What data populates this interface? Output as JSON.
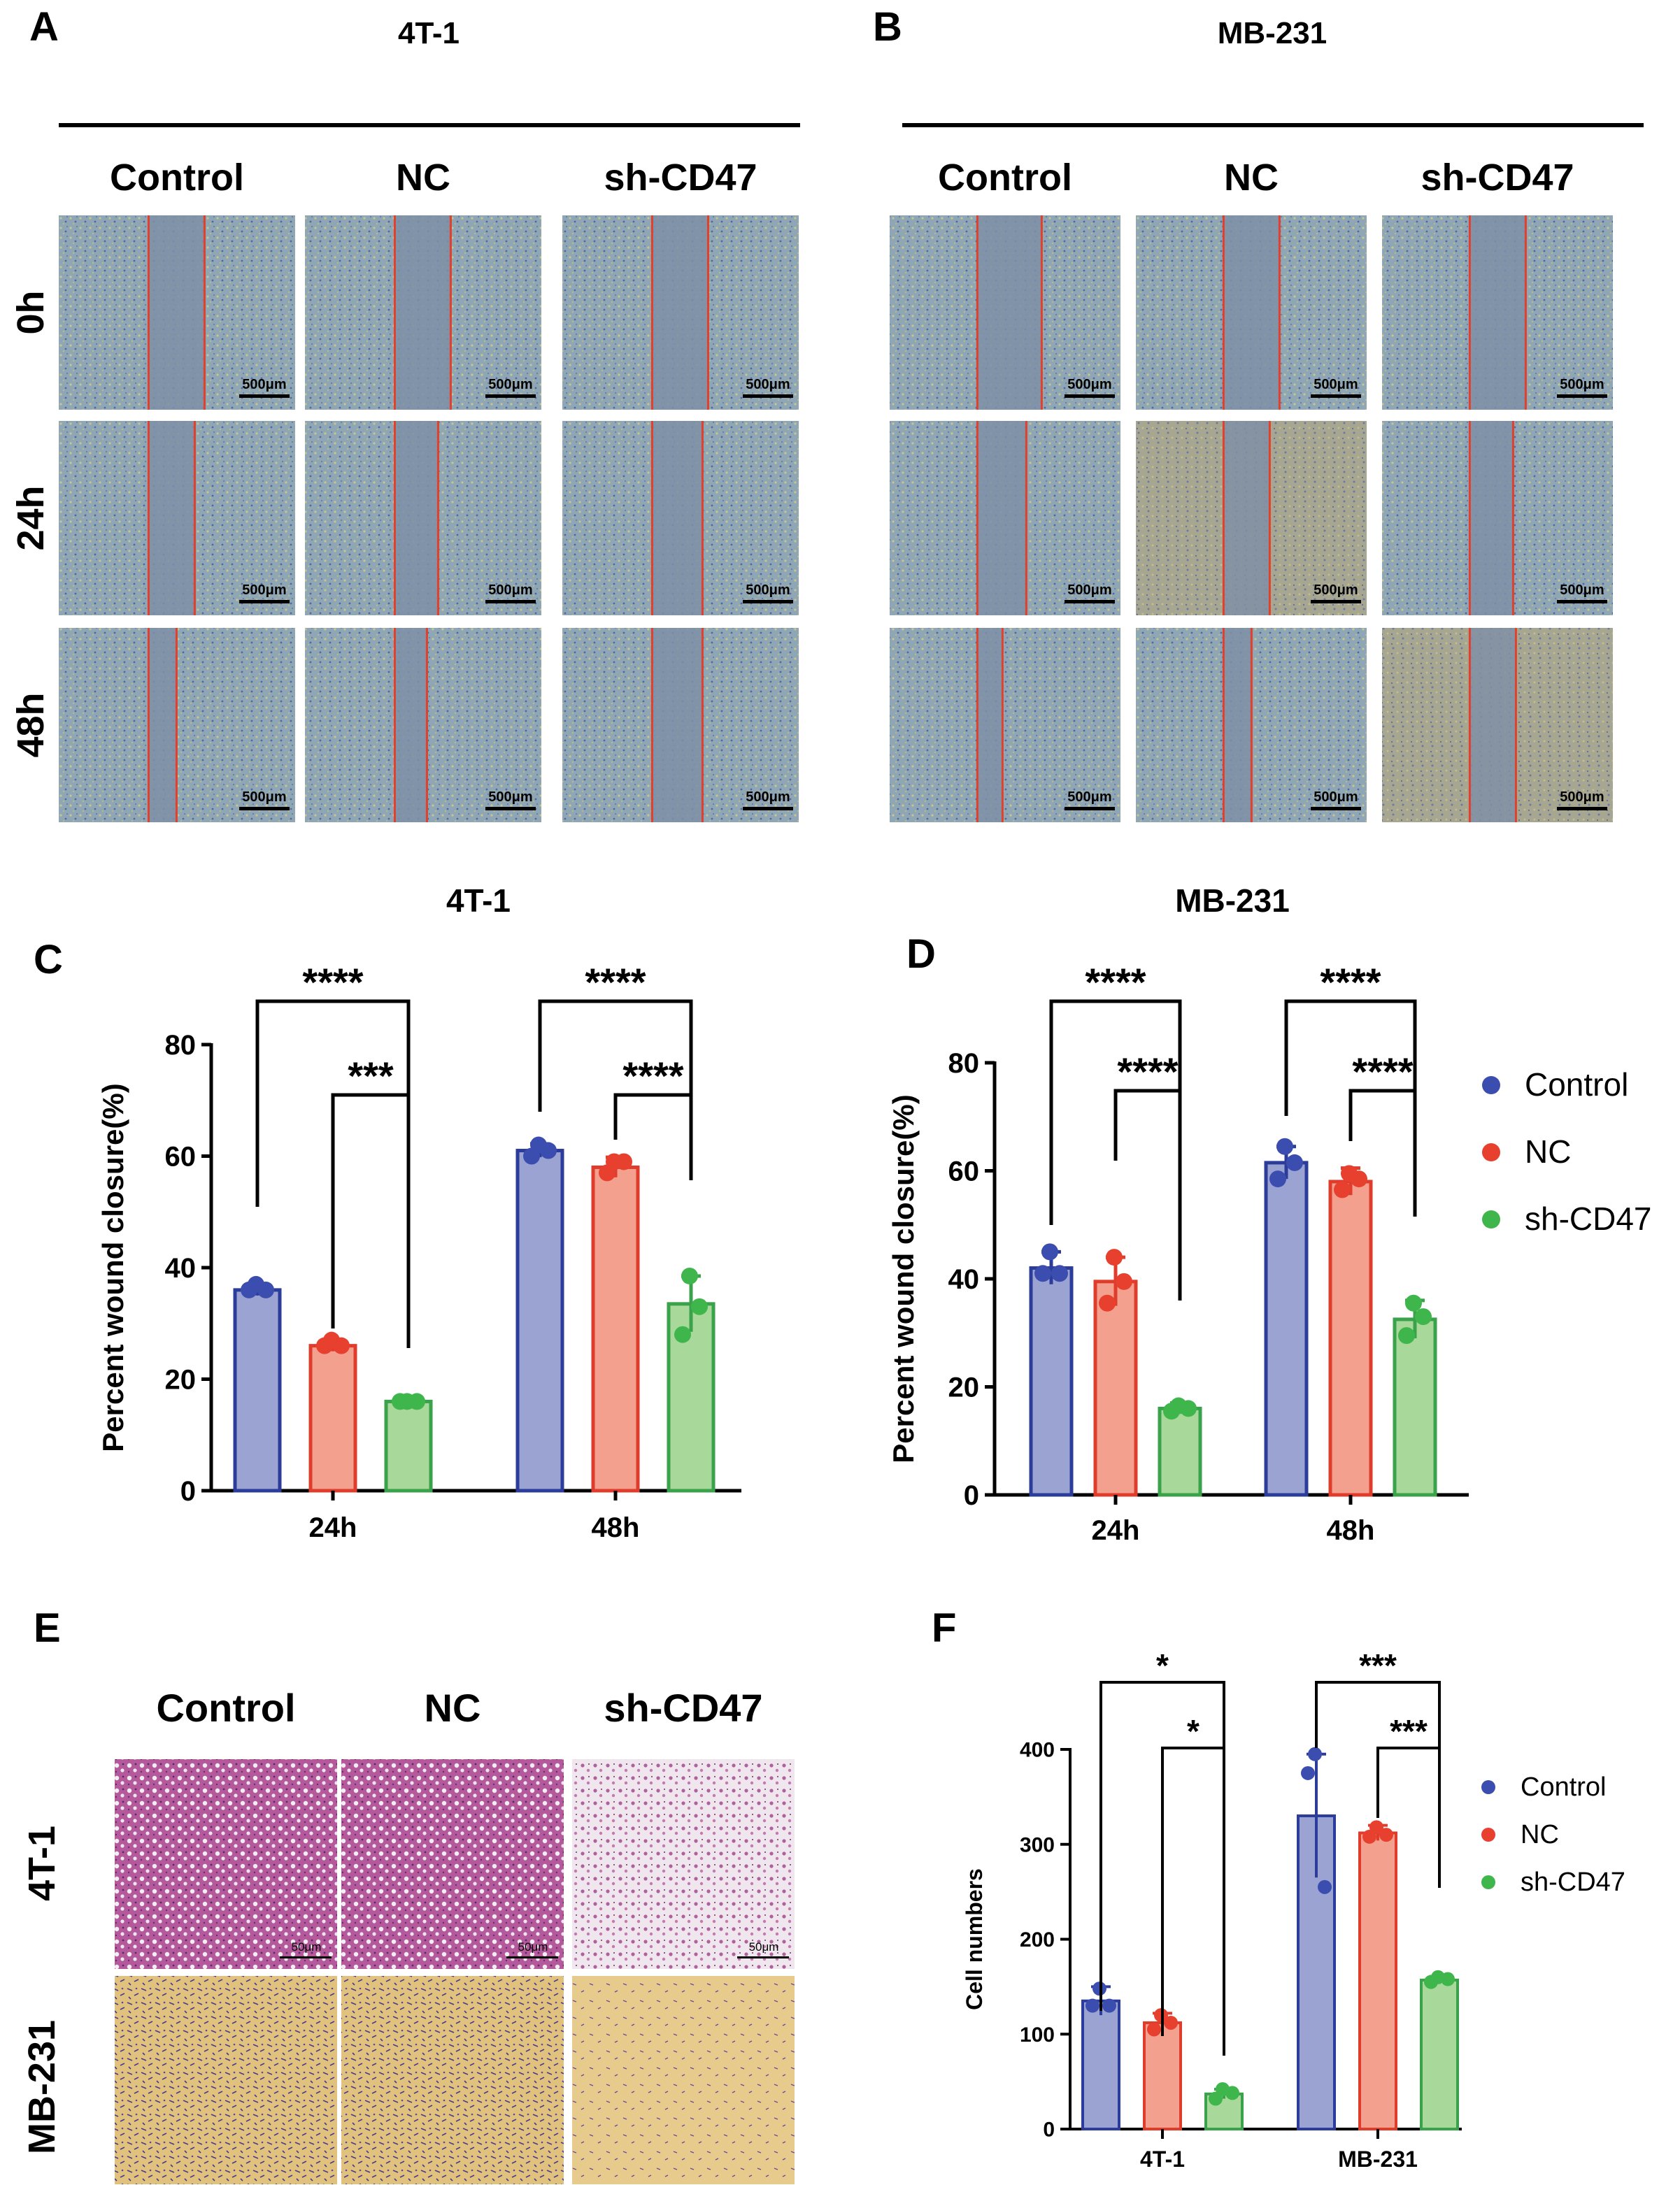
{
  "panels": {
    "A": {
      "letter": "A",
      "title": "4T-1",
      "conditions": [
        "Control",
        "NC",
        "sh-CD47"
      ],
      "times": [
        "0h",
        "24h",
        "48h"
      ],
      "scale_bar": "500μm"
    },
    "B": {
      "letter": "B",
      "title": "MB-231",
      "conditions": [
        "Control",
        "NC",
        "sh-CD47"
      ],
      "scale_bar": "500μm"
    },
    "C": {
      "letter": "C",
      "title": "4T-1"
    },
    "D": {
      "letter": "D",
      "title": "MB-231"
    },
    "E": {
      "letter": "E",
      "conditions": [
        "Control",
        "NC",
        "sh-CD47"
      ],
      "rows": [
        "4T-1",
        "MB-231"
      ],
      "scale_bar": "50μm"
    },
    "F": {
      "letter": "F"
    }
  },
  "legend": [
    "Control",
    "NC",
    "sh-CD47"
  ],
  "colors": {
    "control_fill": "#9aa3d2",
    "control_edge": "#2c3c9a",
    "control_dot": "#3c4db0",
    "nc_fill": "#f4a08e",
    "nc_edge": "#e03c2c",
    "nc_dot": "#e8402e",
    "sh_fill": "#a8d89a",
    "sh_edge": "#3aa24a",
    "sh_dot": "#3fb64c"
  },
  "chart_data": [
    {
      "id": "C",
      "type": "bar",
      "title": "4T-1",
      "ylabel": "Percent wound closure(%)",
      "ylim": [
        0,
        80
      ],
      "yticks": [
        0,
        20,
        40,
        60,
        80
      ],
      "categories": [
        "24h",
        "48h"
      ],
      "series": [
        {
          "name": "Control",
          "values": [
            36,
            61
          ],
          "err": [
            1.0,
            1.2
          ],
          "points": [
            [
              37,
              36,
              36
            ],
            [
              62,
              60,
              61
            ]
          ]
        },
        {
          "name": "NC",
          "values": [
            26,
            58
          ],
          "err": [
            1.0,
            1.8
          ],
          "points": [
            [
              27,
              26,
              26
            ],
            [
              59,
              57,
              59
            ]
          ]
        },
        {
          "name": "sh-CD47",
          "values": [
            16,
            33.5
          ],
          "err": [
            0.6,
            5
          ],
          "points": [
            [
              16,
              16,
              16
            ],
            [
              38.5,
              28,
              33
            ]
          ]
        }
      ],
      "annotations": [
        {
          "text": "****",
          "group": 0,
          "from": 0,
          "to": 2
        },
        {
          "text": "***",
          "group": 0,
          "from": 1,
          "to": 2
        },
        {
          "text": "****",
          "group": 1,
          "from": 0,
          "to": 2
        },
        {
          "text": "****",
          "group": 1,
          "from": 1,
          "to": 2
        }
      ]
    },
    {
      "id": "D",
      "type": "bar",
      "title": "MB-231",
      "ylabel": "Percent wound closure(%)",
      "ylim": [
        0,
        80
      ],
      "yticks": [
        0,
        20,
        40,
        60,
        80
      ],
      "categories": [
        "24h",
        "48h"
      ],
      "series": [
        {
          "name": "Control",
          "values": [
            42,
            61.5
          ],
          "err": [
            3,
            3
          ],
          "points": [
            [
              45,
              41,
              41
            ],
            [
              64.5,
              58.5,
              61.5
            ]
          ]
        },
        {
          "name": "NC",
          "values": [
            39.5,
            58
          ],
          "err": [
            4.5,
            2.5
          ],
          "points": [
            [
              44,
              35.5,
              39.5
            ],
            [
              59.5,
              56.5,
              58.5
            ]
          ]
        },
        {
          "name": "sh-CD47",
          "values": [
            16,
            32.5
          ],
          "err": [
            1,
            3.5
          ],
          "points": [
            [
              16.5,
              15.5,
              16
            ],
            [
              35.5,
              29.5,
              33
            ]
          ]
        }
      ],
      "annotations": [
        {
          "text": "****",
          "group": 0,
          "from": 0,
          "to": 2
        },
        {
          "text": "****",
          "group": 0,
          "from": 1,
          "to": 2
        },
        {
          "text": "****",
          "group": 1,
          "from": 0,
          "to": 2
        },
        {
          "text": "****",
          "group": 1,
          "from": 1,
          "to": 2
        }
      ]
    },
    {
      "id": "F",
      "type": "bar",
      "ylabel": "Cell numbers",
      "ylim": [
        0,
        400
      ],
      "yticks": [
        0,
        100,
        200,
        300,
        400
      ],
      "categories": [
        "4T-1",
        "MB-231"
      ],
      "series": [
        {
          "name": "Control",
          "values": [
            135,
            330
          ],
          "err": [
            15,
            65
          ],
          "points": [
            [
              148,
              130,
              130
            ],
            [
              395,
              375,
              255
            ]
          ]
        },
        {
          "name": "NC",
          "values": [
            112,
            312
          ],
          "err": [
            10,
            8
          ],
          "points": [
            [
              120,
              105,
              112
            ],
            [
              318,
              308,
              310
            ]
          ]
        },
        {
          "name": "sh-CD47",
          "values": [
            37,
            157
          ],
          "err": [
            5,
            4
          ],
          "points": [
            [
              42,
              32,
              38
            ],
            [
              160,
              155,
              158
            ]
          ]
        }
      ],
      "annotations": [
        {
          "text": "*",
          "group": 0,
          "from": 0,
          "to": 2
        },
        {
          "text": "*",
          "group": 0,
          "from": 1,
          "to": 2
        },
        {
          "text": "***",
          "group": 1,
          "from": 0,
          "to": 2
        },
        {
          "text": "***",
          "group": 1,
          "from": 1,
          "to": 2
        }
      ]
    }
  ]
}
